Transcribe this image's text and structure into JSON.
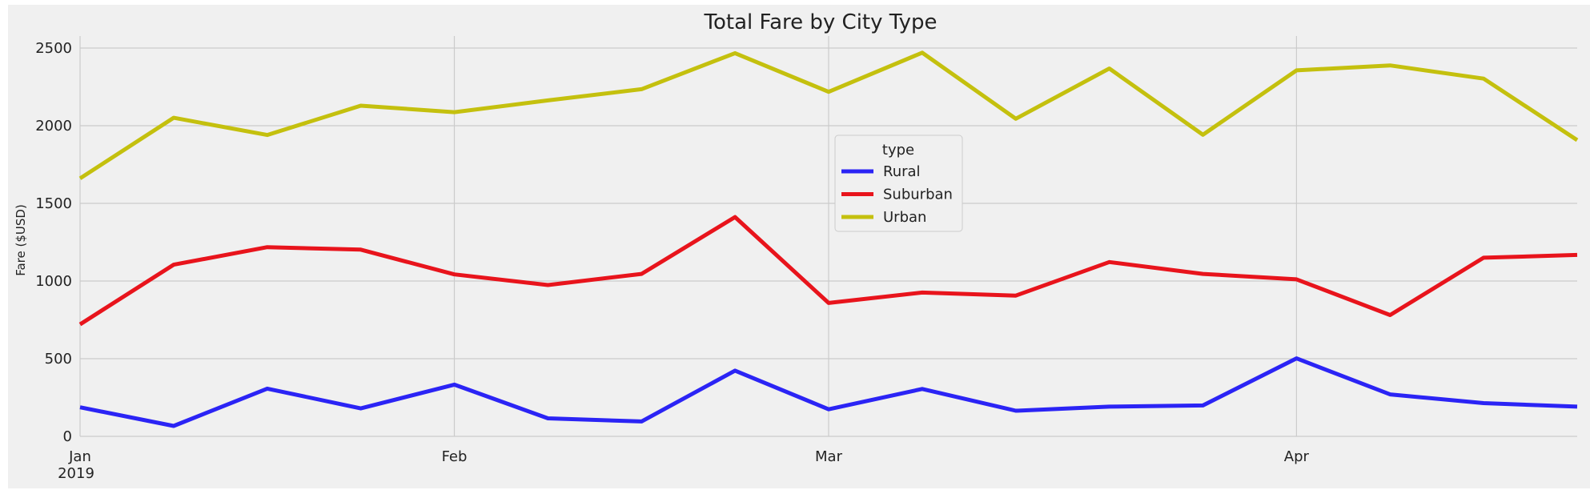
{
  "chart_data": {
    "type": "line",
    "title": "Total Fare by City Type",
    "xlabel": "",
    "ylabel": "Fare ($USD)",
    "ylim": [
      0,
      2600
    ],
    "yticks": [
      0,
      500,
      1000,
      1500,
      2000,
      2500
    ],
    "x_range": [
      "2019-01-06",
      "2019-04-28"
    ],
    "x_ticks": [
      {
        "date": "2019-01-06",
        "label": "Jan",
        "sublabel": "2019"
      },
      {
        "date": "2019-02-03",
        "label": "Feb",
        "sublabel": ""
      },
      {
        "date": "2019-03-03",
        "label": "Mar",
        "sublabel": ""
      },
      {
        "date": "2019-04-07",
        "label": "Apr",
        "sublabel": ""
      }
    ],
    "grid": true,
    "legend": {
      "title": "type",
      "placement": "center"
    },
    "x": [
      "2019-01-06",
      "2019-01-13",
      "2019-01-20",
      "2019-01-27",
      "2019-02-03",
      "2019-02-10",
      "2019-02-17",
      "2019-02-24",
      "2019-03-03",
      "2019-03-10",
      "2019-03-17",
      "2019-03-24",
      "2019-03-31",
      "2019-04-07",
      "2019-04-14",
      "2019-04-21",
      "2019-04-28"
    ],
    "series": [
      {
        "name": "Rural",
        "color": "#2b24f5",
        "values": [
          187,
          67,
          307,
          180,
          333,
          116,
          96,
          423,
          174,
          305,
          165,
          191,
          199,
          502,
          270,
          214,
          191
        ]
      },
      {
        "name": "Suburban",
        "color": "#e8141c",
        "values": [
          721,
          1105,
          1218,
          1202,
          1043,
          974,
          1046,
          1412,
          859,
          926,
          906,
          1122,
          1046,
          1011,
          781,
          1150,
          1168
        ]
      },
      {
        "name": "Urban",
        "color": "#c4c00e",
        "values": [
          1661,
          2051,
          1940,
          2129,
          2087,
          2163,
          2235,
          2467,
          2218,
          2470,
          2045,
          2368,
          1942,
          2356,
          2388,
          2303,
          1907
        ]
      }
    ]
  }
}
